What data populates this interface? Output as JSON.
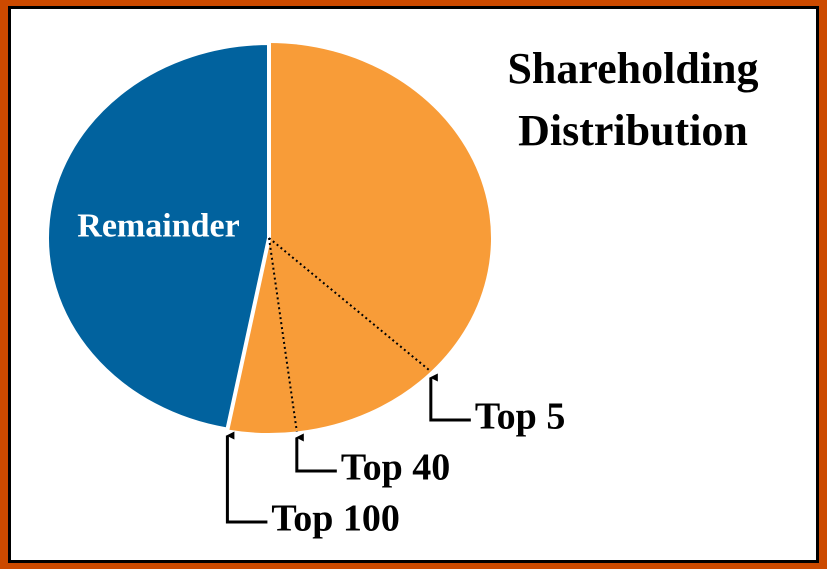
{
  "chart_data": {
    "type": "pie",
    "title": "Shareholding Distribution",
    "categories": [
      "Top 5",
      "Top 40",
      "Top 100",
      "Remainder"
    ],
    "values": [
      37,
      11,
      5,
      47
    ],
    "colors": [
      "#f89c38",
      "#f89c38",
      "#f89c38",
      "#01629e"
    ]
  }
}
